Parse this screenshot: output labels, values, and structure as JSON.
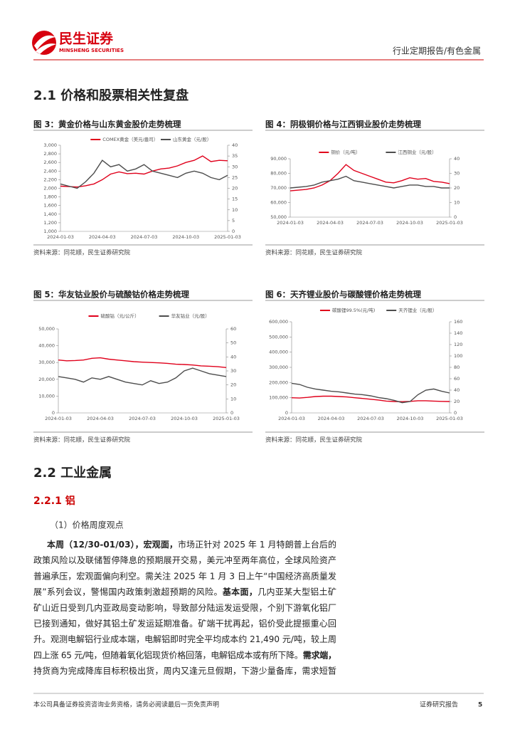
{
  "header": {
    "brand": "民生证券",
    "brand_en": "MINSHENG SECURITIES",
    "category": "行业定期报告/有色金属"
  },
  "section_title": "2.1 价格和股票相关性复盘",
  "chart_data": [
    {
      "type": "line",
      "title": "图 3：黄金价格与山东黄金股价走势梳理",
      "source": "资料来源：同花顺，民生证券研究院",
      "xticks": [
        "2024-01-03",
        "2024-04-03",
        "2024-07-03",
        "2024-10-03",
        "2025-01-03"
      ],
      "ylim": [
        1000,
        3000
      ],
      "yticks": [
        {
          "value": 1000,
          "label": "1,000"
        },
        {
          "value": 1200,
          "label": "1,200"
        },
        {
          "value": 1400,
          "label": "1,400"
        },
        {
          "value": 1600,
          "label": "1,600"
        },
        {
          "value": 1800,
          "label": "1,800"
        },
        {
          "value": 2000,
          "label": "2,000"
        },
        {
          "value": 2200,
          "label": "2,200"
        },
        {
          "value": 2400,
          "label": "2,400"
        },
        {
          "value": 2600,
          "label": "2,600"
        },
        {
          "value": 2800,
          "label": "2,800"
        },
        {
          "value": 3000,
          "label": "3,000"
        }
      ],
      "y2lim": [
        0,
        40
      ],
      "y2ticks": [
        0,
        5,
        10,
        15,
        20,
        25,
        30,
        35,
        40
      ],
      "series": [
        {
          "name": "COMEX黄金（美元/盎司）",
          "color": "#e0001b",
          "axis": "y",
          "values": [
            2050,
            2040,
            2030,
            2060,
            2100,
            2200,
            2330,
            2380,
            2340,
            2350,
            2330,
            2400,
            2450,
            2470,
            2520,
            2600,
            2650,
            2750,
            2620,
            2650,
            2640
          ]
        },
        {
          "name": "山东黄金（元/股）",
          "color": "#4d4d4d",
          "axis": "y2",
          "values": [
            22,
            21,
            20,
            23,
            27,
            33,
            30,
            31,
            28,
            29,
            31,
            28,
            27,
            26,
            25,
            27,
            28,
            27,
            25,
            24,
            26
          ]
        }
      ]
    },
    {
      "type": "line",
      "title": "图 4：阴极铜价格与江西铜业股价走势梳理",
      "source": "资料来源：同花顺，民生证券研究院",
      "xticks": [
        "2024-01-03",
        "2024-04-03",
        "2024-07-03",
        "2024-10-03",
        "2025-01-03"
      ],
      "ylim": [
        50000,
        90000
      ],
      "yticks": [
        {
          "value": 50000,
          "label": "50,000"
        },
        {
          "value": 60000,
          "label": "60,000"
        },
        {
          "value": 70000,
          "label": "70,000"
        },
        {
          "value": 80000,
          "label": "80,000"
        },
        {
          "value": 90000,
          "label": "90,000"
        }
      ],
      "y2lim": [
        0,
        40
      ],
      "y2ticks": [
        0,
        10,
        20,
        30,
        40
      ],
      "series": [
        {
          "name": "铜价（元/吨）",
          "color": "#e0001b",
          "axis": "y",
          "values": [
            68000,
            68500,
            69000,
            70000,
            72000,
            75000,
            80000,
            86000,
            82000,
            80000,
            78000,
            76000,
            74000,
            73500,
            75000,
            77000,
            76000,
            76500,
            74500,
            74000,
            73000
          ]
        },
        {
          "name": "江西铜业（元/股）",
          "color": "#4d4d4d",
          "axis": "y2",
          "values": [
            20,
            20.5,
            21,
            22,
            24,
            25,
            26,
            28,
            25,
            24,
            23,
            22,
            21,
            20,
            21,
            22,
            22,
            21,
            21,
            20,
            20
          ]
        }
      ]
    },
    {
      "type": "line",
      "title": "图 5：华友钴业股价与硫酸钴价格走势梳理",
      "source": "资料来源：同花顺，民生证券研究院",
      "xticks": [
        "2024-01-03",
        "2024-04-03",
        "2024-07-03",
        "2024-10-03",
        "2025-01-03"
      ],
      "ylim": [
        0,
        50000
      ],
      "yticks": [
        0,
        {
          "value": 10000,
          "label": "10,000"
        },
        {
          "value": 20000,
          "label": "20,000"
        },
        {
          "value": 30000,
          "label": "30,000"
        },
        {
          "value": 40000,
          "label": "40,000"
        },
        {
          "value": 50000,
          "label": "50,000"
        }
      ],
      "y2lim": [
        0,
        60
      ],
      "y2ticks": [
        0,
        10,
        20,
        30,
        40,
        50,
        60
      ],
      "series": [
        {
          "name": "硫酸钴（元/公斤）",
          "color": "#e0001b",
          "axis": "y",
          "values": [
            31500,
            31000,
            31200,
            31500,
            32500,
            32800,
            32000,
            31500,
            31000,
            30500,
            30200,
            30000,
            29800,
            29500,
            29000,
            28800,
            28500,
            28000,
            27800,
            27500,
            27000
          ]
        },
        {
          "name": "华友钴业（元/股）",
          "color": "#4d4d4d",
          "axis": "y2",
          "values": [
            26,
            25,
            24,
            22,
            25,
            24,
            26,
            24,
            22,
            21,
            20,
            23,
            21,
            22,
            25,
            30,
            32,
            30,
            28,
            27,
            26
          ]
        }
      ]
    },
    {
      "type": "line",
      "title": "图 6：天齐锂业股价与碳酸锂价格走势梳理",
      "source": "资料来源：同花顺，民生证券研究院",
      "xticks": [
        "2024-01-03",
        "2024-04-03",
        "2024-07-03",
        "2024-10-03",
        "2025-01-03"
      ],
      "ylim": [
        0,
        600000
      ],
      "yticks": [
        0,
        {
          "value": 100000,
          "label": "100,000"
        },
        {
          "value": 200000,
          "label": "200,000"
        },
        {
          "value": 300000,
          "label": "300,000"
        },
        {
          "value": 400000,
          "label": "400,000"
        },
        {
          "value": 500000,
          "label": "500,000"
        },
        {
          "value": 600000,
          "label": "600,000"
        }
      ],
      "y2lim": [
        0,
        160
      ],
      "y2ticks": [
        0,
        20,
        40,
        60,
        80,
        100,
        120,
        140,
        160
      ],
      "series": [
        {
          "name": "碳酸锂99.5%(元/吨)",
          "color": "#e0001b",
          "axis": "y",
          "values": [
            100000,
            98000,
            102000,
            108000,
            110000,
            110000,
            108000,
            105000,
            100000,
            95000,
            90000,
            85000,
            78000,
            75000,
            74000,
            76000,
            80000,
            80000,
            78000,
            76000,
            75000
          ]
        },
        {
          "name": "天齐锂业（元/股）",
          "color": "#4d4d4d",
          "axis": "y2",
          "values": [
            52,
            50,
            45,
            42,
            40,
            38,
            37,
            35,
            33,
            32,
            30,
            27,
            25,
            22,
            18,
            20,
            32,
            40,
            42,
            38,
            35
          ]
        }
      ]
    }
  ],
  "section2_title": "2.2 工业金属",
  "subsection_title": "2.2.1 铝",
  "point_title": "（1）价格周度观点",
  "paragraph": [
    [
      {
        "text": "本周（12/30-01/03），宏观面，",
        "bold": true
      },
      {
        "text": "市场正针对 2025 年 1 月特朗普上台后的",
        "bold": false
      }
    ],
    [
      {
        "text": "政策风险以及联储暂停降息的预期展开交易，美元冲至两年高位，全球风险资产",
        "bold": false
      }
    ],
    [
      {
        "text": "普遍承压，宏观面偏向利空。需关注 2025 年 1 月 3 日上午“中国经济高质量发",
        "bold": false
      }
    ],
    [
      {
        "text": "展”系列会议，警惕国内政策刺激超预期的风险。",
        "bold": false
      },
      {
        "text": "基本面，",
        "bold": true
      },
      {
        "text": "几内亚某大型铝土矿",
        "bold": false
      }
    ],
    [
      {
        "text": "矿山近日受到几内亚政局变动影响，导致部分陆运发运受限，个别下游氧化铝厂",
        "bold": false
      }
    ],
    [
      {
        "text": "已接到通知，做好其铝土矿发运延期准备。矿端干扰再起，铝价受此提振重心回",
        "bold": false
      }
    ],
    [
      {
        "text": "升。观测电解铝行业成本端，电解铝即时完全平均成本约 21,490 元/吨，较上周",
        "bold": false
      }
    ],
    [
      {
        "text": "四上涨 65 元/吨，但随着氧化铝现货价格回落，电解铝成本或有所下降。",
        "bold": false
      },
      {
        "text": "需求端，",
        "bold": true
      }
    ],
    [
      {
        "text": "持货商为完成降库目标积极出货，周内又逢元旦假期，下游少量备库，需求短暂",
        "bold": false
      }
    ]
  ],
  "footer": {
    "disclaimer": "本公司具备证券投资咨询业务资格，请务必阅读最后一页免责声明",
    "label": "证券研究报告",
    "page": "5"
  }
}
